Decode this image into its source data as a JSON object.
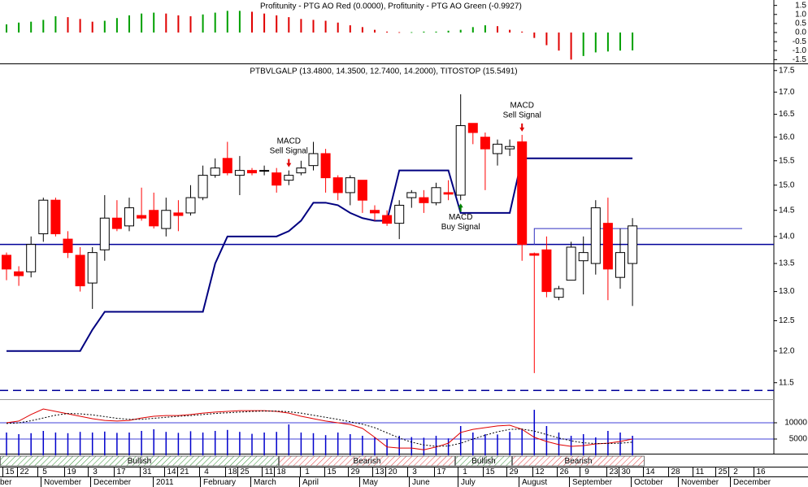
{
  "chart_data": [
    {
      "type": "bar",
      "title": "Profitunity - PTG AO Red (0.0000), Profitunity - PTG AO Green (-0.9927)",
      "values": [
        0.45,
        0.55,
        0.6,
        0.7,
        0.9,
        0.85,
        0.75,
        0.6,
        0.65,
        0.8,
        0.95,
        1.05,
        1.1,
        1.05,
        0.95,
        0.9,
        1.0,
        1.1,
        1.2,
        1.2,
        1.15,
        1.05,
        0.95,
        0.85,
        0.75,
        0.7,
        0.65,
        0.55,
        0.4,
        0.3,
        0.15,
        0.05,
        0.02,
        0.02,
        0.05,
        0.05,
        0.1,
        0.15,
        0.3,
        0.4,
        0.35,
        0.15,
        0.05,
        -0.3,
        -0.7,
        -1.0,
        -1.5,
        -1.3,
        -1.1,
        -1.05,
        -1.0,
        -0.99
      ],
      "up_color": "#00a000",
      "down_color": "#e00000",
      "ylim": [
        -1.8,
        1.8
      ],
      "yticks": [
        1.5,
        {
          "value": 1,
          "label": "1.0"
        },
        0.5,
        {
          "value": 0,
          "label": "0.0"
        },
        -0.5,
        {
          "value": -1,
          "label": "-1.0"
        },
        -1.5
      ]
    },
    {
      "type": "candlestick",
      "title": "PTBVLGALP (13.4800, 14.3500, 12.7400, 14.2000), TITOSTOP (15.5491)",
      "open": [
        13.65,
        13.35,
        13.35,
        14.05,
        14.7,
        13.95,
        13.65,
        13.15,
        13.75,
        14.35,
        14.2,
        14.4,
        14.5,
        14.15,
        14.45,
        14.45,
        14.75,
        15.2,
        15.55,
        15.2,
        15.3,
        15.3,
        15.25,
        15.1,
        15.25,
        15.4,
        15.65,
        15.15,
        14.85,
        15.1,
        14.5,
        14.4,
        14.25,
        14.75,
        14.75,
        14.65,
        14.85,
        14.8,
        16.3,
        16.0,
        15.65,
        15.75,
        15.9,
        13.68,
        13.75,
        12.9,
        13.2,
        13.55,
        13.5,
        14.25,
        13.25,
        13.5
      ],
      "high": [
        13.7,
        13.45,
        14.0,
        14.75,
        14.75,
        14.1,
        13.8,
        13.8,
        14.8,
        14.7,
        14.75,
        14.95,
        14.85,
        14.75,
        14.7,
        15.0,
        15.4,
        15.55,
        15.9,
        15.6,
        15.35,
        15.4,
        15.35,
        15.3,
        15.5,
        15.9,
        15.75,
        15.2,
        15.2,
        15.1,
        14.6,
        14.5,
        14.7,
        14.9,
        14.9,
        15.05,
        15.1,
        16.95,
        16.3,
        16.1,
        15.95,
        15.95,
        16.05,
        13.7,
        14.0,
        13.1,
        13.9,
        14.0,
        14.7,
        14.75,
        14.15,
        14.35
      ],
      "low": [
        13.2,
        13.1,
        13.25,
        13.9,
        14.0,
        13.6,
        13.0,
        12.7,
        13.55,
        14.1,
        14.1,
        14.3,
        14.15,
        14.0,
        14.1,
        14.4,
        14.7,
        15.15,
        15.2,
        14.8,
        15.2,
        15.2,
        14.85,
        15.0,
        15.2,
        15.3,
        14.85,
        14.7,
        14.6,
        14.45,
        14.3,
        14.2,
        13.95,
        14.55,
        14.45,
        14.6,
        14.7,
        14.7,
        15.85,
        14.9,
        15.4,
        15.6,
        13.55,
        11.65,
        12.9,
        12.85,
        13.2,
        12.95,
        13.3,
        12.85,
        13.05,
        12.75
      ],
      "close": [
        13.4,
        13.28,
        13.85,
        14.7,
        14.05,
        13.7,
        13.1,
        13.7,
        14.35,
        14.15,
        14.55,
        14.35,
        14.2,
        14.5,
        14.4,
        14.75,
        15.2,
        15.35,
        15.25,
        15.3,
        15.25,
        15.3,
        15.0,
        15.2,
        15.35,
        15.65,
        15.15,
        14.85,
        15.15,
        14.7,
        14.45,
        14.25,
        14.6,
        14.85,
        14.65,
        14.95,
        14.82,
        16.25,
        16.1,
        15.75,
        15.85,
        15.8,
        13.85,
        13.65,
        13.0,
        13.05,
        13.8,
        13.7,
        14.55,
        13.4,
        13.7,
        14.2
      ],
      "up_color": "#ffffff",
      "down_color": "#ff0000",
      "stop": {
        "name": "TITOSTOP",
        "color": "#000080",
        "values": [
          12.0,
          12.0,
          12.0,
          12.0,
          12.0,
          12.0,
          12.0,
          12.35,
          12.65,
          12.65,
          12.65,
          12.65,
          12.65,
          12.65,
          12.65,
          12.65,
          12.65,
          13.5,
          14.0,
          14.0,
          14.0,
          14.0,
          14.0,
          14.1,
          14.3,
          14.65,
          14.65,
          14.6,
          14.45,
          14.35,
          14.3,
          14.3,
          15.3,
          15.3,
          15.3,
          15.3,
          15.3,
          14.45,
          14.45,
          14.45,
          14.45,
          14.45,
          15.55,
          15.55,
          15.55,
          15.55,
          15.55,
          15.55,
          15.55,
          15.55,
          15.55,
          15.55
        ]
      },
      "hlines": [
        {
          "value": 13.85,
          "style": "solid",
          "color": "#000099"
        },
        {
          "value": 11.38,
          "style": "dashed",
          "color": "#000099"
        },
        {
          "value": 14.15,
          "style": "thin",
          "color": "#3030c0"
        }
      ],
      "annotations": [
        [
          "MACD",
          "Sell Signal"
        ],
        [
          "MACD",
          "Buy Signal"
        ],
        [
          "MACD",
          "Sell Signal"
        ]
      ],
      "annotation_colors": [
        "#e00000",
        "#008000",
        "#e00000"
      ],
      "log_scale": true,
      "ylim": [
        11.26,
        17.63
      ],
      "yticks": [
        11.5,
        {
          "value": 12,
          "label": "12.0"
        },
        12.5,
        {
          "value": 13,
          "label": "13.0"
        },
        13.5,
        {
          "value": 14,
          "label": "14.0"
        },
        14.5,
        {
          "value": 15,
          "label": "15.0"
        },
        15.5,
        {
          "value": 16,
          "label": "16.0"
        },
        16.5,
        {
          "value": 17,
          "label": "17.0"
        },
        17.5
      ]
    },
    {
      "type": "volume_macd",
      "volume": {
        "color": "#0000cc",
        "values": [
          7000,
          6500,
          6800,
          7500,
          7000,
          6800,
          7200,
          7000,
          7300,
          6900,
          7000,
          7500,
          8000,
          7200,
          6900,
          7400,
          7000,
          7500,
          7800,
          7200,
          6600,
          7000,
          7200,
          9500,
          7000,
          6800,
          6200,
          7000,
          6500,
          6000,
          5500,
          5000,
          6000,
          5600,
          5400,
          6000,
          5200,
          9000,
          7000,
          6500,
          6400,
          7200,
          8000,
          14000,
          9000,
          7000,
          6000,
          6500,
          5500,
          7500,
          7000,
          6000
        ]
      },
      "ylim": [
        0,
        17000
      ],
      "yticks": [
        10000,
        5000
      ],
      "grid_color": "#0000cc",
      "series": [
        {
          "name": "MACD",
          "color": "#e00000",
          "axis": "y2",
          "values": [
            0.14,
            0.19,
            0.38,
            0.54,
            0.47,
            0.4,
            0.33,
            0.26,
            0.21,
            0.19,
            0.21,
            0.28,
            0.33,
            0.35,
            0.35,
            0.38,
            0.42,
            0.45,
            0.47,
            0.49,
            0.49,
            0.49,
            0.47,
            0.42,
            0.33,
            0.26,
            0.19,
            0.14,
            0.09,
            -0.02,
            -0.28,
            -0.56,
            -0.59,
            -0.59,
            -0.64,
            -0.56,
            -0.45,
            -0.14,
            -0.05,
            0.0,
            0.05,
            0.07,
            -0.05,
            -0.28,
            -0.4,
            -0.49,
            -0.54,
            -0.52,
            -0.47,
            -0.45,
            -0.4,
            -0.33
          ]
        },
        {
          "name": "Signal",
          "color": "#000000",
          "axis": "y2",
          "dotted": true,
          "values": [
            0.12,
            0.14,
            0.2,
            0.28,
            0.36,
            0.41,
            0.4,
            0.37,
            0.32,
            0.27,
            0.24,
            0.24,
            0.27,
            0.3,
            0.33,
            0.35,
            0.38,
            0.41,
            0.43,
            0.45,
            0.47,
            0.48,
            0.48,
            0.46,
            0.42,
            0.36,
            0.3,
            0.24,
            0.17,
            0.1,
            0.0,
            -0.15,
            -0.3,
            -0.42,
            -0.5,
            -0.54,
            -0.53,
            -0.45,
            -0.33,
            -0.22,
            -0.12,
            -0.05,
            -0.04,
            -0.1,
            -0.2,
            -0.3,
            -0.38,
            -0.44,
            -0.46,
            -0.46,
            -0.45,
            -0.42
          ]
        }
      ],
      "y2lim": [
        -0.8,
        0.8
      ]
    }
  ],
  "timeline": {
    "regimes": [
      "Bullish",
      "Bearish",
      "Bullish",
      "Bearish"
    ],
    "days": [
      "15",
      "22",
      "5",
      "19",
      "3",
      "17",
      "31",
      "14",
      "21",
      "4",
      "18",
      "25",
      "11",
      "18",
      "1",
      "15",
      "29",
      "13",
      "20",
      "3",
      "17",
      "1",
      "15",
      "29",
      "12",
      "26",
      "9",
      "23",
      "30",
      "14",
      "28",
      "11",
      "25",
      "2",
      "16"
    ],
    "months": [
      "ber",
      "November",
      "December",
      "2011",
      "February",
      "March",
      "April",
      "May",
      "June",
      "July",
      "August",
      "September",
      "October",
      "November",
      "December"
    ]
  }
}
